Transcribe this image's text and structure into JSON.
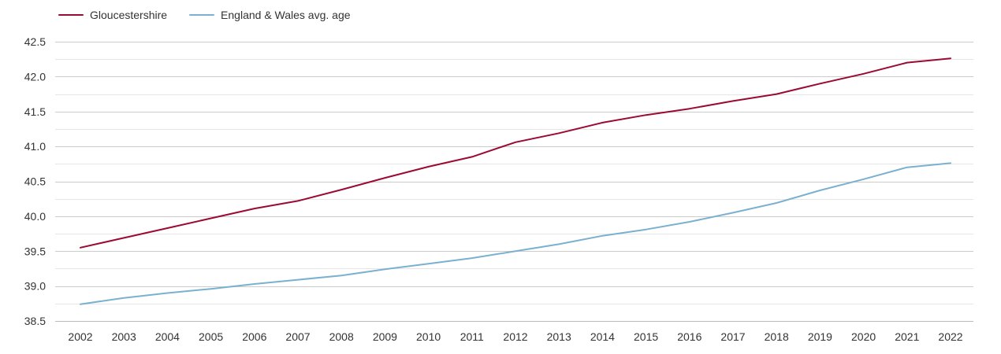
{
  "chart_data": {
    "type": "line",
    "title": "",
    "xlabel": "",
    "ylabel": "",
    "x": [
      2002,
      2003,
      2004,
      2005,
      2006,
      2007,
      2008,
      2009,
      2010,
      2011,
      2012,
      2013,
      2014,
      2015,
      2016,
      2017,
      2018,
      2019,
      2020,
      2021,
      2022
    ],
    "ylim": [
      38.5,
      42.5
    ],
    "yticks": [
      "42.5",
      "42.0",
      "41.5",
      "41.0",
      "40.5",
      "40.0",
      "39.5",
      "39.0",
      "38.5"
    ],
    "ytick_values": [
      42.5,
      42.0,
      41.5,
      41.0,
      40.5,
      40.0,
      39.5,
      39.0,
      38.5
    ],
    "grid": true,
    "legend_position": "top-left",
    "series": [
      {
        "name": "Gloucestershire",
        "color": "#9b0a32",
        "values": [
          39.55,
          39.69,
          39.83,
          39.97,
          40.11,
          40.22,
          40.38,
          40.55,
          40.71,
          40.85,
          41.06,
          41.19,
          41.34,
          41.45,
          41.54,
          41.65,
          41.75,
          41.9,
          42.04,
          42.2,
          42.26
        ]
      },
      {
        "name": "England & Wales avg. age",
        "color": "#7ab0d0",
        "values": [
          38.74,
          38.83,
          38.9,
          38.96,
          39.03,
          39.09,
          39.15,
          39.24,
          39.32,
          39.4,
          39.5,
          39.6,
          39.72,
          39.81,
          39.92,
          40.05,
          40.19,
          40.37,
          40.53,
          40.7,
          40.76
        ]
      }
    ]
  },
  "colors": {
    "major_grid": "#cccccc",
    "minor_grid": "#e6e6e6",
    "axis": "#bbbbbb",
    "tick_text": "#333333"
  }
}
